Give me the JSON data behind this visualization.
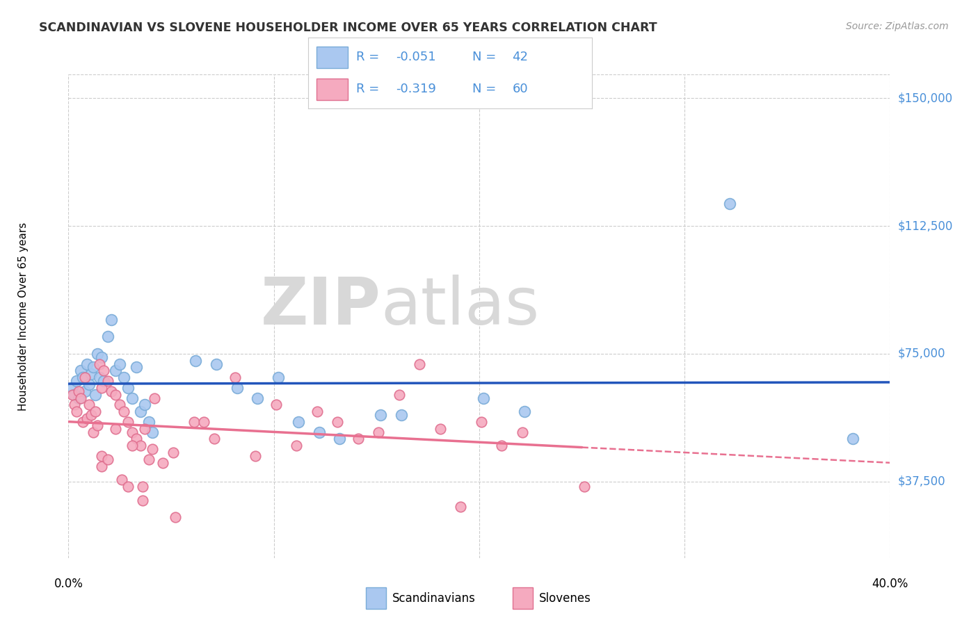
{
  "title": "SCANDINAVIAN VS SLOVENE HOUSEHOLDER INCOME OVER 65 YEARS CORRELATION CHART",
  "source": "Source: ZipAtlas.com",
  "ylabel": "Householder Income Over 65 years",
  "xmin": 0.0,
  "xmax": 0.4,
  "ymin": 15000,
  "ymax": 157000,
  "yticks": [
    37500,
    75000,
    112500,
    150000
  ],
  "ytick_labels": [
    "$37,500",
    "$75,000",
    "$112,500",
    "$150,000"
  ],
  "grid_color": "#cccccc",
  "scand_color": "#aac8f0",
  "slove_color": "#f5aabf",
  "scand_edge_color": "#7aacd8",
  "slove_edge_color": "#e07090",
  "scand_line_color": "#2255bb",
  "slove_line_color": "#e87090",
  "label_color": "#4a90d9",
  "watermark_color": "#d8d8d8",
  "legend_text_color": "#4a90d9",
  "legend_R_color": "#4a90d9",
  "legend_N_color": "#4a90d9",
  "scand_R": "-0.051",
  "scand_N": "42",
  "slove_R": "-0.319",
  "slove_N": "60",
  "scand_points": [
    [
      0.002,
      65000
    ],
    [
      0.003,
      63000
    ],
    [
      0.004,
      67000
    ],
    [
      0.005,
      62000
    ],
    [
      0.006,
      70000
    ],
    [
      0.007,
      68000
    ],
    [
      0.008,
      64000
    ],
    [
      0.009,
      72000
    ],
    [
      0.01,
      66000
    ],
    [
      0.011,
      69000
    ],
    [
      0.012,
      71000
    ],
    [
      0.013,
      63000
    ],
    [
      0.014,
      75000
    ],
    [
      0.015,
      68000
    ],
    [
      0.016,
      74000
    ],
    [
      0.017,
      67000
    ],
    [
      0.019,
      80000
    ],
    [
      0.021,
      85000
    ],
    [
      0.023,
      70000
    ],
    [
      0.025,
      72000
    ],
    [
      0.027,
      68000
    ],
    [
      0.029,
      65000
    ],
    [
      0.031,
      62000
    ],
    [
      0.033,
      71000
    ],
    [
      0.035,
      58000
    ],
    [
      0.037,
      60000
    ],
    [
      0.039,
      55000
    ],
    [
      0.041,
      52000
    ],
    [
      0.062,
      73000
    ],
    [
      0.072,
      72000
    ],
    [
      0.082,
      65000
    ],
    [
      0.092,
      62000
    ],
    [
      0.102,
      68000
    ],
    [
      0.112,
      55000
    ],
    [
      0.122,
      52000
    ],
    [
      0.132,
      50000
    ],
    [
      0.152,
      57000
    ],
    [
      0.162,
      57000
    ],
    [
      0.202,
      62000
    ],
    [
      0.222,
      58000
    ],
    [
      0.322,
      119000
    ],
    [
      0.382,
      50000
    ]
  ],
  "slove_points": [
    [
      0.002,
      63000
    ],
    [
      0.003,
      60000
    ],
    [
      0.004,
      58000
    ],
    [
      0.005,
      64000
    ],
    [
      0.006,
      62000
    ],
    [
      0.007,
      55000
    ],
    [
      0.008,
      68000
    ],
    [
      0.009,
      56000
    ],
    [
      0.01,
      60000
    ],
    [
      0.011,
      57000
    ],
    [
      0.012,
      52000
    ],
    [
      0.013,
      58000
    ],
    [
      0.014,
      54000
    ],
    [
      0.015,
      72000
    ],
    [
      0.016,
      65000
    ],
    [
      0.017,
      70000
    ],
    [
      0.019,
      67000
    ],
    [
      0.021,
      64000
    ],
    [
      0.023,
      63000
    ],
    [
      0.025,
      60000
    ],
    [
      0.027,
      58000
    ],
    [
      0.029,
      55000
    ],
    [
      0.031,
      52000
    ],
    [
      0.033,
      50000
    ],
    [
      0.035,
      48000
    ],
    [
      0.037,
      53000
    ],
    [
      0.039,
      44000
    ],
    [
      0.041,
      47000
    ],
    [
      0.046,
      43000
    ],
    [
      0.051,
      46000
    ],
    [
      0.061,
      55000
    ],
    [
      0.071,
      50000
    ],
    [
      0.081,
      68000
    ],
    [
      0.091,
      45000
    ],
    [
      0.101,
      60000
    ],
    [
      0.111,
      48000
    ],
    [
      0.121,
      58000
    ],
    [
      0.131,
      55000
    ],
    [
      0.141,
      50000
    ],
    [
      0.151,
      52000
    ],
    [
      0.161,
      63000
    ],
    [
      0.171,
      72000
    ],
    [
      0.181,
      53000
    ],
    [
      0.191,
      30000
    ],
    [
      0.201,
      55000
    ],
    [
      0.211,
      48000
    ],
    [
      0.221,
      52000
    ],
    [
      0.052,
      27000
    ],
    [
      0.026,
      38000
    ],
    [
      0.029,
      36000
    ],
    [
      0.036,
      36000
    ],
    [
      0.042,
      62000
    ],
    [
      0.016,
      45000
    ],
    [
      0.016,
      42000
    ],
    [
      0.019,
      44000
    ],
    [
      0.023,
      53000
    ],
    [
      0.031,
      48000
    ],
    [
      0.066,
      55000
    ],
    [
      0.036,
      32000
    ],
    [
      0.251,
      36000
    ]
  ]
}
